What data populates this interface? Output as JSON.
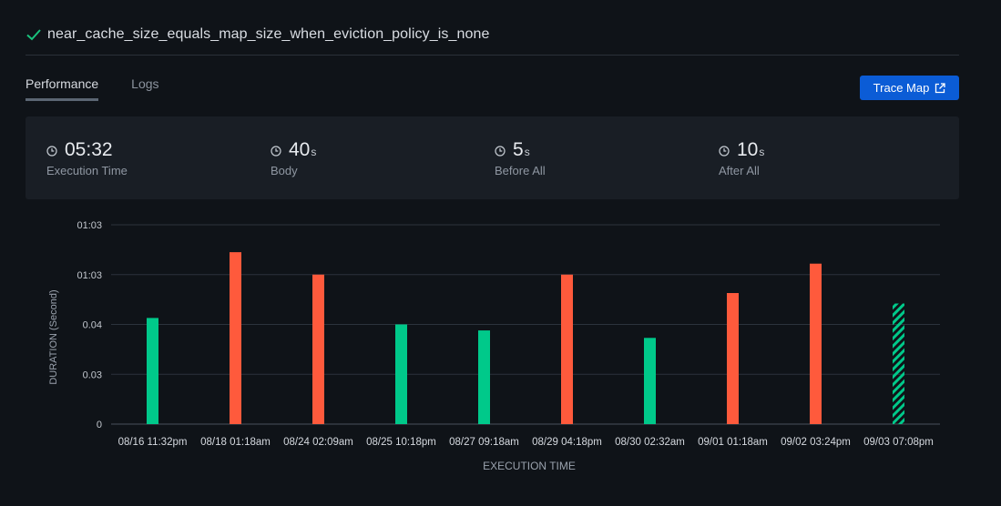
{
  "header": {
    "title": "near_cache_size_equals_map_size_when_eviction_policy_is_none"
  },
  "tabs": [
    {
      "label": "Performance",
      "active": true
    },
    {
      "label": "Logs",
      "active": false
    }
  ],
  "toolbar": {
    "trace_map_label": "Trace Map"
  },
  "stats": [
    {
      "value": "05:32",
      "unit": "",
      "label": "Execution Time"
    },
    {
      "value": "40",
      "unit": "s",
      "label": "Body"
    },
    {
      "value": "5",
      "unit": "s",
      "label": "Before All"
    },
    {
      "value": "10",
      "unit": "s",
      "label": "After All"
    }
  ],
  "colors": {
    "pass": "#00c98a",
    "fail": "#ff5a3c",
    "accent": "#0b5cd6"
  },
  "chart_data": {
    "type": "bar",
    "ylabel": "DURATION (Second)",
    "xlabel": "EXECUTION TIME",
    "ytick_labels": [
      "0",
      "0.03",
      "0.04",
      "01:03",
      "01:03"
    ],
    "ylim": [
      0,
      4
    ],
    "grid": true,
    "categories": [
      "08/16 11:32pm",
      "08/18 01:18am",
      "08/24 02:09am",
      "08/25 10:18pm",
      "08/27 09:18am",
      "08/29 04:18pm",
      "08/30 02:32am",
      "09/01 01:18am",
      "09/02 03:24pm",
      "09/03 07:08pm"
    ],
    "values": [
      2.13,
      3.45,
      3.0,
      2.0,
      1.88,
      3.0,
      1.73,
      2.63,
      3.22,
      2.42
    ],
    "status": [
      "pass",
      "fail",
      "fail",
      "pass",
      "pass",
      "fail",
      "pass",
      "fail",
      "fail",
      "running"
    ]
  }
}
